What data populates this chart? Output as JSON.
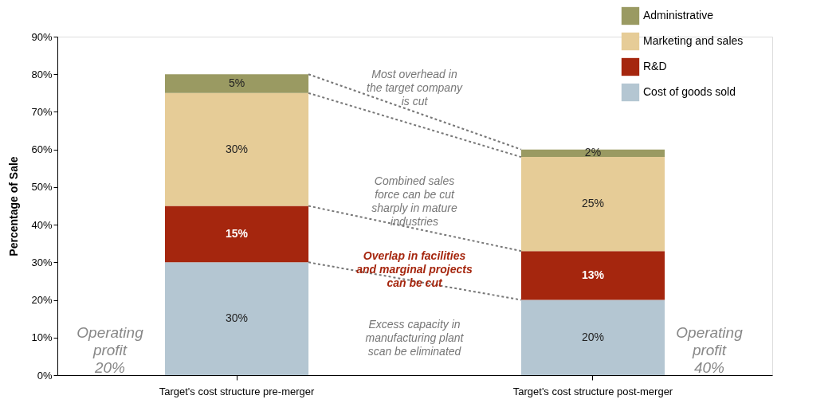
{
  "chart_data": {
    "type": "bar",
    "stacked": true,
    "ylabel": "Percentage of Sale",
    "categories": [
      "Target's cost structure pre-merger",
      "Target's cost structure post-merger"
    ],
    "series": [
      {
        "name": "Cost of goods sold",
        "color": "#b4c6d2",
        "values": [
          30,
          20
        ],
        "value_labels": [
          "30%",
          "20%"
        ]
      },
      {
        "name": "R&D",
        "color": "#a5260e",
        "values": [
          15,
          13
        ],
        "value_labels": [
          "15%",
          "13%"
        ]
      },
      {
        "name": "Marketing and sales",
        "color": "#e6cc97",
        "values": [
          30,
          25
        ],
        "value_labels": [
          "30%",
          "25%"
        ]
      },
      {
        "name": "Administrative",
        "color": "#9a9a62",
        "values": [
          5,
          2
        ],
        "value_labels": [
          "5%",
          "2%"
        ]
      }
    ],
    "ylim": [
      0,
      90
    ],
    "yticks": [
      {
        "value": 0,
        "label": "0%"
      },
      {
        "value": 10,
        "label": "10%"
      },
      {
        "value": 20,
        "label": "20%"
      },
      {
        "value": 30,
        "label": "30%"
      },
      {
        "value": 40,
        "label": "40%"
      },
      {
        "value": 50,
        "label": "50%"
      },
      {
        "value": 60,
        "label": "60%"
      },
      {
        "value": 70,
        "label": "70%"
      },
      {
        "value": 80,
        "label": "80%"
      },
      {
        "value": 90,
        "label": "90%"
      }
    ],
    "grid": false,
    "legend": "top right",
    "annotations": [
      "Most overhead in\nthe target company\nis cut",
      "Combined sales\nforce can be cut\nsharply in mature\nindustries",
      "Overlap in facilities\nand marginal projects\ncan be cut",
      "Excess capacity in\nmanufacturing plant\nscan be eliminated",
      "Operating\nprofit\n20%",
      "Operating\nprofit\n40%"
    ]
  }
}
